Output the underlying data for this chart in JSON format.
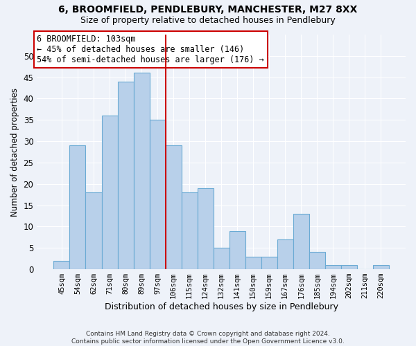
{
  "title": "6, BROOMFIELD, PENDLEBURY, MANCHESTER, M27 8XX",
  "subtitle": "Size of property relative to detached houses in Pendlebury",
  "xlabel": "Distribution of detached houses by size in Pendlebury",
  "ylabel": "Number of detached properties",
  "categories": [
    "45sqm",
    "54sqm",
    "62sqm",
    "71sqm",
    "80sqm",
    "89sqm",
    "97sqm",
    "106sqm",
    "115sqm",
    "124sqm",
    "132sqm",
    "141sqm",
    "150sqm",
    "159sqm",
    "167sqm",
    "176sqm",
    "185sqm",
    "194sqm",
    "202sqm",
    "211sqm",
    "220sqm"
  ],
  "values": [
    2,
    29,
    18,
    36,
    44,
    46,
    35,
    29,
    18,
    19,
    5,
    9,
    3,
    3,
    7,
    13,
    4,
    1,
    1,
    0,
    1
  ],
  "bar_color": "#b8d0ea",
  "bar_edge_color": "#6aaad4",
  "vline_x_idx": 6.5,
  "vline_color": "#cc0000",
  "annotation_text": "6 BROOMFIELD: 103sqm\n← 45% of detached houses are smaller (146)\n54% of semi-detached houses are larger (176) →",
  "annotation_box_color": "#ffffff",
  "annotation_box_edge": "#cc0000",
  "ylim": [
    0,
    55
  ],
  "yticks": [
    0,
    5,
    10,
    15,
    20,
    25,
    30,
    35,
    40,
    45,
    50
  ],
  "footer": "Contains HM Land Registry data © Crown copyright and database right 2024.\nContains public sector information licensed under the Open Government Licence v3.0.",
  "bg_color": "#eef2f9",
  "grid_color": "#ffffff"
}
